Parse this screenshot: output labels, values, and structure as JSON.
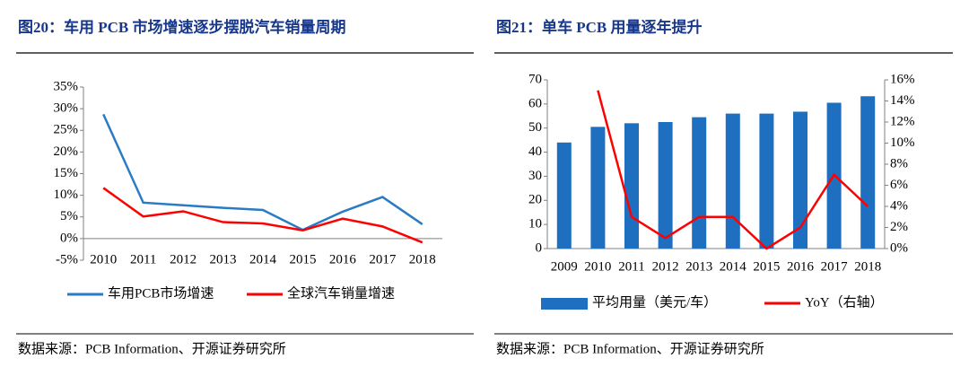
{
  "chart_data": [
    {
      "type": "line",
      "title": "图20：车用 PCB 市场增速逐步摆脱汽车销量周期",
      "source": "数据来源：PCB Information、开源证券研究所",
      "categories": [
        "2010",
        "2011",
        "2012",
        "2013",
        "2014",
        "2015",
        "2016",
        "2017",
        "2018"
      ],
      "series": [
        {
          "name": "车用PCB市场增速",
          "color": "#2b7bc4",
          "values": [
            28.7,
            8.3,
            7.7,
            7.1,
            6.6,
            2.0,
            6.2,
            9.6,
            3.3
          ]
        },
        {
          "name": "全球汽车销量增速",
          "color": "#ff0000",
          "values": [
            11.7,
            5.1,
            6.3,
            3.8,
            3.5,
            1.9,
            4.6,
            2.8,
            -0.9
          ]
        }
      ],
      "ylim": [
        -5,
        35
      ],
      "yticks": [
        {
          "value": -5,
          "label": "-5%"
        },
        {
          "value": 0,
          "label": "0%"
        },
        {
          "value": 5,
          "label": "5%"
        },
        {
          "value": 10,
          "label": "10%"
        },
        {
          "value": 15,
          "label": "15%"
        },
        {
          "value": 20,
          "label": "20%"
        },
        {
          "value": 25,
          "label": "25%"
        },
        {
          "value": 30,
          "label": "30%"
        },
        {
          "value": 35,
          "label": "35%"
        }
      ],
      "grid": false,
      "legend": "bottom"
    },
    {
      "type": "bar",
      "title": "图21：单车 PCB 用量逐年提升",
      "source": "数据来源：PCB Information、开源证券研究所",
      "categories": [
        "2009",
        "2010",
        "2011",
        "2012",
        "2013",
        "2014",
        "2015",
        "2016",
        "2017",
        "2018"
      ],
      "series": [
        {
          "name": "平均用量（美元/车）",
          "type": "bar",
          "color": "#1f6fc0",
          "values": [
            44,
            50.5,
            52,
            52.5,
            54.5,
            56,
            56,
            56.8,
            60.5,
            63.2
          ]
        },
        {
          "name": "YoY（右轴）",
          "type": "line",
          "axis": "y2",
          "color": "#ff0000",
          "values": [
            null,
            15,
            3,
            1,
            3,
            3,
            0,
            2,
            7,
            4
          ]
        }
      ],
      "ylim": [
        0,
        70
      ],
      "yticks": [
        0,
        10,
        20,
        30,
        40,
        50,
        60,
        70
      ],
      "y2lim": [
        0,
        16
      ],
      "y2ticks": [
        {
          "value": 0,
          "label": "0%"
        },
        {
          "value": 2,
          "label": "2%"
        },
        {
          "value": 4,
          "label": "4%"
        },
        {
          "value": 6,
          "label": "6%"
        },
        {
          "value": 8,
          "label": "8%"
        },
        {
          "value": 10,
          "label": "10%"
        },
        {
          "value": 12,
          "label": "12%"
        },
        {
          "value": 14,
          "label": "14%"
        },
        {
          "value": 16,
          "label": "16%"
        }
      ],
      "grid": false,
      "legend": "bottom"
    }
  ]
}
